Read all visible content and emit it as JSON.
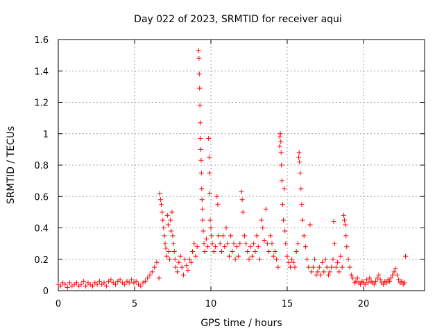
{
  "chart_data": {
    "type": "scatter",
    "title": "Day 022 of 2023, SRMTID for receiver aqui",
    "xlabel": "GPS time / hours",
    "ylabel": "SRMTID / TECUs",
    "xlim": [
      0,
      24
    ],
    "ylim": [
      0,
      1.6
    ],
    "x_ticks": [
      0,
      5,
      10,
      15,
      20
    ],
    "x_tick_labels": [
      "0",
      "5",
      "10",
      "15",
      "20"
    ],
    "y_ticks": [
      0,
      0.2,
      0.4,
      0.6,
      0.8,
      1,
      1.2,
      1.4,
      1.6
    ],
    "y_tick_labels": [
      "0",
      "0.2",
      "0.4",
      "0.6",
      "0.8",
      "1",
      "1.2",
      "1.4",
      "1.6"
    ],
    "grid": true,
    "marker": "+",
    "series": [
      {
        "name": "SRMTID",
        "color": "#ff0000",
        "points": [
          [
            0.0,
            0.04
          ],
          [
            0.15,
            0.03
          ],
          [
            0.3,
            0.05
          ],
          [
            0.45,
            0.04
          ],
          [
            0.6,
            0.02
          ],
          [
            0.75,
            0.05
          ],
          [
            0.9,
            0.03
          ],
          [
            1.05,
            0.04
          ],
          [
            1.2,
            0.05
          ],
          [
            1.35,
            0.03
          ],
          [
            1.5,
            0.04
          ],
          [
            1.65,
            0.06
          ],
          [
            1.8,
            0.03
          ],
          [
            1.95,
            0.05
          ],
          [
            2.1,
            0.04
          ],
          [
            2.25,
            0.03
          ],
          [
            2.4,
            0.05
          ],
          [
            2.55,
            0.04
          ],
          [
            2.7,
            0.06
          ],
          [
            2.85,
            0.04
          ],
          [
            3.0,
            0.05
          ],
          [
            3.15,
            0.03
          ],
          [
            3.3,
            0.06
          ],
          [
            3.45,
            0.07
          ],
          [
            3.6,
            0.05
          ],
          [
            3.75,
            0.04
          ],
          [
            3.9,
            0.06
          ],
          [
            4.05,
            0.07
          ],
          [
            4.2,
            0.05
          ],
          [
            4.35,
            0.04
          ],
          [
            4.5,
            0.06
          ],
          [
            4.65,
            0.05
          ],
          [
            4.8,
            0.07
          ],
          [
            4.95,
            0.05
          ],
          [
            5.1,
            0.06
          ],
          [
            5.25,
            0.04
          ],
          [
            5.4,
            0.03
          ],
          [
            5.55,
            0.05
          ],
          [
            5.7,
            0.06
          ],
          [
            5.85,
            0.08
          ],
          [
            6.0,
            0.1
          ],
          [
            6.15,
            0.12
          ],
          [
            6.3,
            0.15
          ],
          [
            6.45,
            0.18
          ],
          [
            6.6,
            0.08
          ],
          [
            6.65,
            0.62
          ],
          [
            6.7,
            0.58
          ],
          [
            6.75,
            0.55
          ],
          [
            6.8,
            0.5
          ],
          [
            6.85,
            0.45
          ],
          [
            6.9,
            0.4
          ],
          [
            6.95,
            0.35
          ],
          [
            7.0,
            0.3
          ],
          [
            7.05,
            0.27
          ],
          [
            7.1,
            0.22
          ],
          [
            7.15,
            0.48
          ],
          [
            7.2,
            0.42
          ],
          [
            7.25,
            0.25
          ],
          [
            7.3,
            0.2
          ],
          [
            7.35,
            0.45
          ],
          [
            7.4,
            0.38
          ],
          [
            7.45,
            0.5
          ],
          [
            7.5,
            0.35
          ],
          [
            7.55,
            0.3
          ],
          [
            7.6,
            0.25
          ],
          [
            7.65,
            0.2
          ],
          [
            7.7,
            0.15
          ],
          [
            7.8,
            0.12
          ],
          [
            7.9,
            0.18
          ],
          [
            8.0,
            0.22
          ],
          [
            8.1,
            0.15
          ],
          [
            8.2,
            0.1
          ],
          [
            8.3,
            0.2
          ],
          [
            8.4,
            0.16
          ],
          [
            8.5,
            0.13
          ],
          [
            8.6,
            0.2
          ],
          [
            8.7,
            0.18
          ],
          [
            8.8,
            0.25
          ],
          [
            8.9,
            0.3
          ],
          [
            9.0,
            0.22
          ],
          [
            9.1,
            0.28
          ],
          [
            9.2,
            1.53
          ],
          [
            9.22,
            1.48
          ],
          [
            9.24,
            1.38
          ],
          [
            9.26,
            1.29
          ],
          [
            9.28,
            1.18
          ],
          [
            9.3,
            1.07
          ],
          [
            9.32,
            0.97
          ],
          [
            9.34,
            0.9
          ],
          [
            9.36,
            0.83
          ],
          [
            9.38,
            0.75
          ],
          [
            9.4,
            0.65
          ],
          [
            9.42,
            0.58
          ],
          [
            9.44,
            0.52
          ],
          [
            9.46,
            0.45
          ],
          [
            9.5,
            0.38
          ],
          [
            9.55,
            0.3
          ],
          [
            9.6,
            0.25
          ],
          [
            9.7,
            0.33
          ],
          [
            9.8,
            0.28
          ],
          [
            9.85,
            0.97
          ],
          [
            9.88,
            0.85
          ],
          [
            9.9,
            0.75
          ],
          [
            9.92,
            0.62
          ],
          [
            9.95,
            0.45
          ],
          [
            10.0,
            0.4
          ],
          [
            10.05,
            0.35
          ],
          [
            10.1,
            0.3
          ],
          [
            10.2,
            0.25
          ],
          [
            10.3,
            0.28
          ],
          [
            10.4,
            0.6
          ],
          [
            10.45,
            0.55
          ],
          [
            10.5,
            0.35
          ],
          [
            10.6,
            0.3
          ],
          [
            10.7,
            0.25
          ],
          [
            10.8,
            0.35
          ],
          [
            10.9,
            0.28
          ],
          [
            11.0,
            0.4
          ],
          [
            11.1,
            0.3
          ],
          [
            11.2,
            0.22
          ],
          [
            11.3,
            0.35
          ],
          [
            11.4,
            0.25
          ],
          [
            11.5,
            0.3
          ],
          [
            11.6,
            0.2
          ],
          [
            11.7,
            0.28
          ],
          [
            11.8,
            0.22
          ],
          [
            11.9,
            0.3
          ],
          [
            12.0,
            0.63
          ],
          [
            12.05,
            0.58
          ],
          [
            12.1,
            0.5
          ],
          [
            12.2,
            0.35
          ],
          [
            12.3,
            0.3
          ],
          [
            12.4,
            0.25
          ],
          [
            12.5,
            0.2
          ],
          [
            12.6,
            0.28
          ],
          [
            12.7,
            0.22
          ],
          [
            12.8,
            0.3
          ],
          [
            12.9,
            0.25
          ],
          [
            13.0,
            0.35
          ],
          [
            13.1,
            0.28
          ],
          [
            13.2,
            0.2
          ],
          [
            13.3,
            0.45
          ],
          [
            13.4,
            0.4
          ],
          [
            13.5,
            0.32
          ],
          [
            13.6,
            0.52
          ],
          [
            13.7,
            0.3
          ],
          [
            13.8,
            0.25
          ],
          [
            13.9,
            0.35
          ],
          [
            14.0,
            0.3
          ],
          [
            14.1,
            0.22
          ],
          [
            14.2,
            0.25
          ],
          [
            14.3,
            0.2
          ],
          [
            14.4,
            0.15
          ],
          [
            14.5,
            0.92
          ],
          [
            14.52,
            0.98
          ],
          [
            14.55,
            1.0
          ],
          [
            14.58,
            0.95
          ],
          [
            14.6,
            0.88
          ],
          [
            14.62,
            0.8
          ],
          [
            14.65,
            0.7
          ],
          [
            14.7,
            0.55
          ],
          [
            14.75,
            0.45
          ],
          [
            14.8,
            0.65
          ],
          [
            14.85,
            0.38
          ],
          [
            14.9,
            0.3
          ],
          [
            15.0,
            0.22
          ],
          [
            15.1,
            0.18
          ],
          [
            15.2,
            0.15
          ],
          [
            15.3,
            0.2
          ],
          [
            15.4,
            0.18
          ],
          [
            15.5,
            0.15
          ],
          [
            15.6,
            0.25
          ],
          [
            15.7,
            0.3
          ],
          [
            15.75,
            0.85
          ],
          [
            15.78,
            0.88
          ],
          [
            15.8,
            0.82
          ],
          [
            15.85,
            0.75
          ],
          [
            15.9,
            0.65
          ],
          [
            15.95,
            0.55
          ],
          [
            16.0,
            0.45
          ],
          [
            16.1,
            0.35
          ],
          [
            16.2,
            0.28
          ],
          [
            16.3,
            0.2
          ],
          [
            16.4,
            0.15
          ],
          [
            16.5,
            0.42
          ],
          [
            16.6,
            0.12
          ],
          [
            16.7,
            0.15
          ],
          [
            16.8,
            0.2
          ],
          [
            16.9,
            0.1
          ],
          [
            17.0,
            0.12
          ],
          [
            17.1,
            0.15
          ],
          [
            17.2,
            0.1
          ],
          [
            17.3,
            0.18
          ],
          [
            17.4,
            0.12
          ],
          [
            17.5,
            0.2
          ],
          [
            17.6,
            0.15
          ],
          [
            17.7,
            0.1
          ],
          [
            17.8,
            0.12
          ],
          [
            17.9,
            0.15
          ],
          [
            18.0,
            0.2
          ],
          [
            18.05,
            0.44
          ],
          [
            18.1,
            0.3
          ],
          [
            18.2,
            0.15
          ],
          [
            18.3,
            0.18
          ],
          [
            18.4,
            0.12
          ],
          [
            18.5,
            0.22
          ],
          [
            18.6,
            0.15
          ],
          [
            18.7,
            0.48
          ],
          [
            18.75,
            0.45
          ],
          [
            18.8,
            0.42
          ],
          [
            18.85,
            0.35
          ],
          [
            18.9,
            0.28
          ],
          [
            19.0,
            0.2
          ],
          [
            19.1,
            0.15
          ],
          [
            19.2,
            0.1
          ],
          [
            19.3,
            0.08
          ],
          [
            19.4,
            0.05
          ],
          [
            19.5,
            0.06
          ],
          [
            19.6,
            0.08
          ],
          [
            19.7,
            0.05
          ],
          [
            19.8,
            0.04
          ],
          [
            19.9,
            0.06
          ],
          [
            20.0,
            0.05
          ],
          [
            20.1,
            0.04
          ],
          [
            20.2,
            0.07
          ],
          [
            20.3,
            0.05
          ],
          [
            20.4,
            0.08
          ],
          [
            20.5,
            0.06
          ],
          [
            20.6,
            0.05
          ],
          [
            20.7,
            0.04
          ],
          [
            20.8,
            0.06
          ],
          [
            20.9,
            0.08
          ],
          [
            21.0,
            0.1
          ],
          [
            21.1,
            0.07
          ],
          [
            21.2,
            0.05
          ],
          [
            21.3,
            0.04
          ],
          [
            21.4,
            0.06
          ],
          [
            21.5,
            0.05
          ],
          [
            21.6,
            0.07
          ],
          [
            21.7,
            0.06
          ],
          [
            21.8,
            0.08
          ],
          [
            21.9,
            0.1
          ],
          [
            22.0,
            0.12
          ],
          [
            22.1,
            0.14
          ],
          [
            22.2,
            0.1
          ],
          [
            22.3,
            0.07
          ],
          [
            22.4,
            0.05
          ],
          [
            22.5,
            0.06
          ],
          [
            22.6,
            0.04
          ],
          [
            22.7,
            0.05
          ],
          [
            22.75,
            0.22
          ]
        ]
      }
    ]
  }
}
